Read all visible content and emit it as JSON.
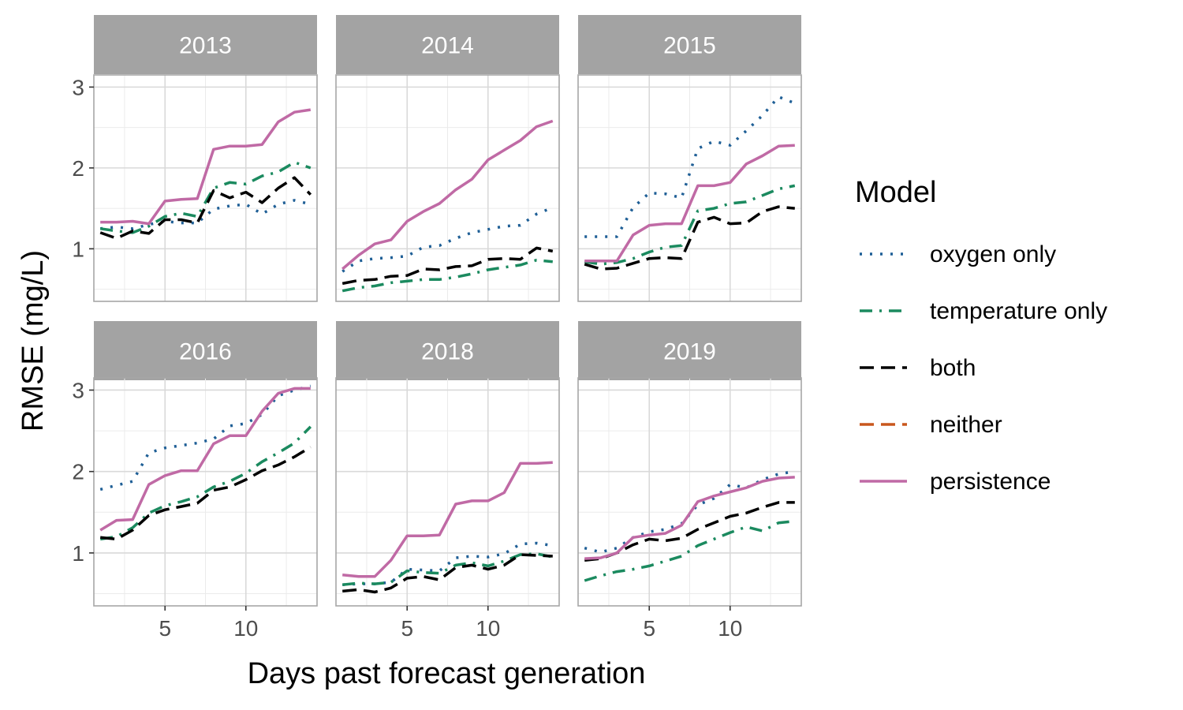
{
  "chart_data": {
    "type": "line",
    "xlabel": "Days past forecast generation",
    "ylabel": "RMSE (mg/L)",
    "xlim": [
      0.6,
      14.4
    ],
    "ylim": [
      0.35,
      3.15
    ],
    "x_ticks": [
      5,
      10
    ],
    "y_ticks": [
      1,
      2,
      3
    ],
    "grid": true,
    "legend": {
      "title": "Model",
      "position": "right"
    },
    "x": [
      1,
      2,
      3,
      4,
      5,
      6,
      7,
      8,
      9,
      10,
      11,
      12,
      13,
      14
    ],
    "series_styles": [
      {
        "name": "oxygen only",
        "color": "#1f5f96",
        "dash": "3,10"
      },
      {
        "name": "temperature only",
        "color": "#1b8a5f",
        "dash": "16,9,3,9"
      },
      {
        "name": "both",
        "color": "#000000",
        "dash": "18,9"
      },
      {
        "name": "neither",
        "color": "#c8571d",
        "dash": "18,9"
      },
      {
        "name": "persistence",
        "color": "#c06aa5",
        "dash": ""
      }
    ],
    "panels": [
      {
        "title": "2013",
        "series": [
          {
            "name": "oxygen only",
            "values": [
              1.25,
              1.27,
              1.25,
              1.3,
              1.34,
              1.32,
              1.32,
              1.49,
              1.53,
              1.55,
              1.43,
              1.55,
              1.6,
              1.55
            ]
          },
          {
            "name": "temperature only",
            "values": [
              1.25,
              1.22,
              1.2,
              1.28,
              1.4,
              1.44,
              1.4,
              1.75,
              1.82,
              1.8,
              1.9,
              1.95,
              2.07,
              2.0
            ]
          },
          {
            "name": "both",
            "values": [
              1.2,
              1.13,
              1.22,
              1.19,
              1.36,
              1.36,
              1.32,
              1.72,
              1.63,
              1.7,
              1.57,
              1.75,
              1.88,
              1.67
            ]
          },
          {
            "name": "persistence",
            "values": [
              1.33,
              1.33,
              1.34,
              1.31,
              1.59,
              1.61,
              1.62,
              2.23,
              2.27,
              2.27,
              2.29,
              2.57,
              2.69,
              2.72
            ]
          }
        ]
      },
      {
        "title": "2014",
        "series": [
          {
            "name": "oxygen only",
            "values": [
              0.72,
              0.85,
              0.88,
              0.89,
              0.91,
              1.02,
              1.04,
              1.13,
              1.2,
              1.24,
              1.28,
              1.29,
              1.43,
              1.51
            ]
          },
          {
            "name": "temperature only",
            "values": [
              0.48,
              0.52,
              0.54,
              0.58,
              0.6,
              0.62,
              0.62,
              0.65,
              0.69,
              0.74,
              0.77,
              0.8,
              0.86,
              0.84
            ]
          },
          {
            "name": "both",
            "values": [
              0.57,
              0.61,
              0.62,
              0.66,
              0.67,
              0.75,
              0.74,
              0.78,
              0.79,
              0.87,
              0.88,
              0.87,
              1.01,
              0.97
            ]
          },
          {
            "name": "persistence",
            "values": [
              0.75,
              0.92,
              1.06,
              1.11,
              1.34,
              1.46,
              1.56,
              1.73,
              1.86,
              2.1,
              2.22,
              2.34,
              2.51,
              2.58
            ]
          }
        ]
      },
      {
        "title": "2015",
        "series": [
          {
            "name": "oxygen only",
            "values": [
              1.15,
              1.15,
              1.15,
              1.51,
              1.69,
              1.68,
              1.63,
              2.24,
              2.33,
              2.28,
              2.46,
              2.65,
              2.88,
              2.8
            ]
          },
          {
            "name": "temperature only",
            "values": [
              0.84,
              0.81,
              0.83,
              0.88,
              0.96,
              1.02,
              1.04,
              1.47,
              1.5,
              1.56,
              1.58,
              1.66,
              1.74,
              1.78
            ]
          },
          {
            "name": "both",
            "values": [
              0.81,
              0.75,
              0.76,
              0.82,
              0.88,
              0.89,
              0.88,
              1.33,
              1.39,
              1.31,
              1.32,
              1.46,
              1.52,
              1.5
            ]
          },
          {
            "name": "persistence",
            "values": [
              0.85,
              0.85,
              0.85,
              1.17,
              1.29,
              1.31,
              1.31,
              1.78,
              1.78,
              1.82,
              2.05,
              2.15,
              2.27,
              2.28
            ]
          }
        ]
      },
      {
        "title": "2016",
        "series": [
          {
            "name": "oxygen only",
            "values": [
              1.78,
              1.83,
              1.88,
              2.23,
              2.29,
              2.32,
              2.35,
              2.4,
              2.56,
              2.59,
              2.7,
              2.93,
              3.0,
              3.05
            ]
          },
          {
            "name": "temperature only",
            "values": [
              1.17,
              1.2,
              1.31,
              1.49,
              1.58,
              1.63,
              1.69,
              1.81,
              1.88,
              1.98,
              2.12,
              2.23,
              2.35,
              2.55
            ]
          },
          {
            "name": "both",
            "values": [
              1.19,
              1.17,
              1.28,
              1.46,
              1.53,
              1.57,
              1.61,
              1.77,
              1.81,
              1.9,
              2.01,
              2.08,
              2.18,
              2.3
            ]
          },
          {
            "name": "persistence",
            "values": [
              1.28,
              1.4,
              1.41,
              1.84,
              1.95,
              2.01,
              2.01,
              2.34,
              2.44,
              2.44,
              2.74,
              2.96,
              3.02,
              3.02
            ]
          }
        ]
      },
      {
        "title": "2018",
        "series": [
          {
            "name": "oxygen only",
            "values": [
              0.61,
              0.62,
              0.62,
              0.64,
              0.8,
              0.79,
              0.78,
              0.94,
              0.96,
              0.95,
              0.99,
              1.11,
              1.12,
              1.09
            ]
          },
          {
            "name": "temperature only",
            "values": [
              0.61,
              0.63,
              0.62,
              0.64,
              0.78,
              0.76,
              0.75,
              0.85,
              0.88,
              0.84,
              0.9,
              0.98,
              0.99,
              0.95
            ]
          },
          {
            "name": "both",
            "values": [
              0.53,
              0.55,
              0.52,
              0.57,
              0.69,
              0.71,
              0.67,
              0.82,
              0.85,
              0.8,
              0.85,
              0.98,
              0.97,
              0.96
            ]
          },
          {
            "name": "persistence",
            "values": [
              0.73,
              0.71,
              0.71,
              0.91,
              1.21,
              1.21,
              1.22,
              1.6,
              1.64,
              1.64,
              1.74,
              2.1,
              2.1,
              2.11
            ]
          }
        ]
      },
      {
        "title": "2019",
        "series": [
          {
            "name": "oxygen only",
            "values": [
              1.06,
              1.01,
              1.06,
              1.19,
              1.26,
              1.29,
              1.36,
              1.59,
              1.67,
              1.84,
              1.8,
              1.9,
              1.97,
              2.0
            ]
          },
          {
            "name": "temperature only",
            "values": [
              0.66,
              0.72,
              0.77,
              0.8,
              0.84,
              0.9,
              0.96,
              1.09,
              1.17,
              1.25,
              1.32,
              1.27,
              1.37,
              1.39
            ]
          },
          {
            "name": "both",
            "values": [
              0.91,
              0.93,
              1.0,
              1.1,
              1.17,
              1.15,
              1.18,
              1.29,
              1.37,
              1.45,
              1.49,
              1.56,
              1.62,
              1.62
            ]
          },
          {
            "name": "persistence",
            "values": [
              0.93,
              0.94,
              1.0,
              1.19,
              1.22,
              1.24,
              1.34,
              1.63,
              1.7,
              1.75,
              1.8,
              1.88,
              1.92,
              1.93
            ]
          }
        ]
      }
    ]
  }
}
